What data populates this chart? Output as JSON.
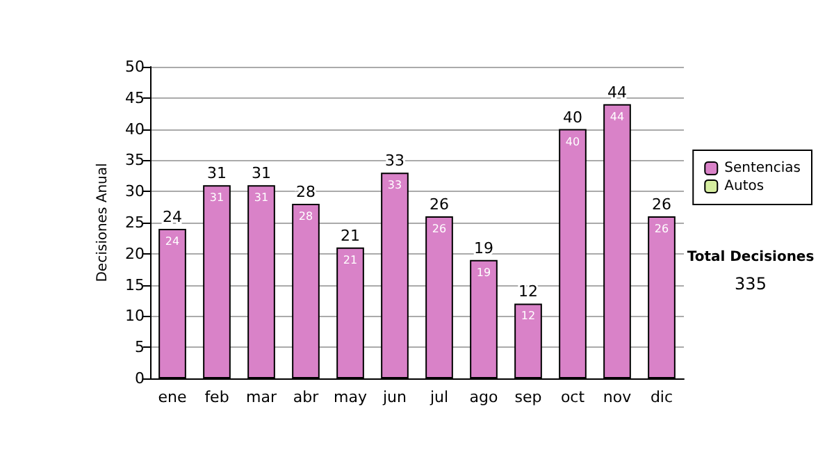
{
  "chart_data": {
    "type": "bar",
    "ylabel": "Decisiones Anual",
    "categories": [
      "ene",
      "feb",
      "mar",
      "abr",
      "may",
      "jun",
      "jul",
      "ago",
      "sep",
      "oct",
      "nov",
      "dic"
    ],
    "series": [
      {
        "name": "Sentencias",
        "color": "#d982c8",
        "values": [
          24,
          31,
          31,
          28,
          21,
          33,
          26,
          19,
          12,
          40,
          44,
          26
        ]
      },
      {
        "name": "Autos",
        "color": "#d6eea0",
        "values": [
          null,
          null,
          null,
          null,
          null,
          null,
          null,
          null,
          null,
          null,
          null,
          null
        ]
      }
    ],
    "stacked": true,
    "data_labels": true,
    "totals": [
      "24",
      "31",
      "31",
      "28",
      "21",
      "33",
      "26",
      "19",
      "12",
      "40",
      "44",
      "26"
    ],
    "ylim": [
      0,
      50
    ],
    "yticks": [
      0,
      5,
      10,
      15,
      20,
      25,
      30,
      35,
      40,
      45,
      50
    ],
    "grid": "y",
    "legend": "right",
    "annotations": [
      "Total Decisiones",
      "335"
    ]
  }
}
